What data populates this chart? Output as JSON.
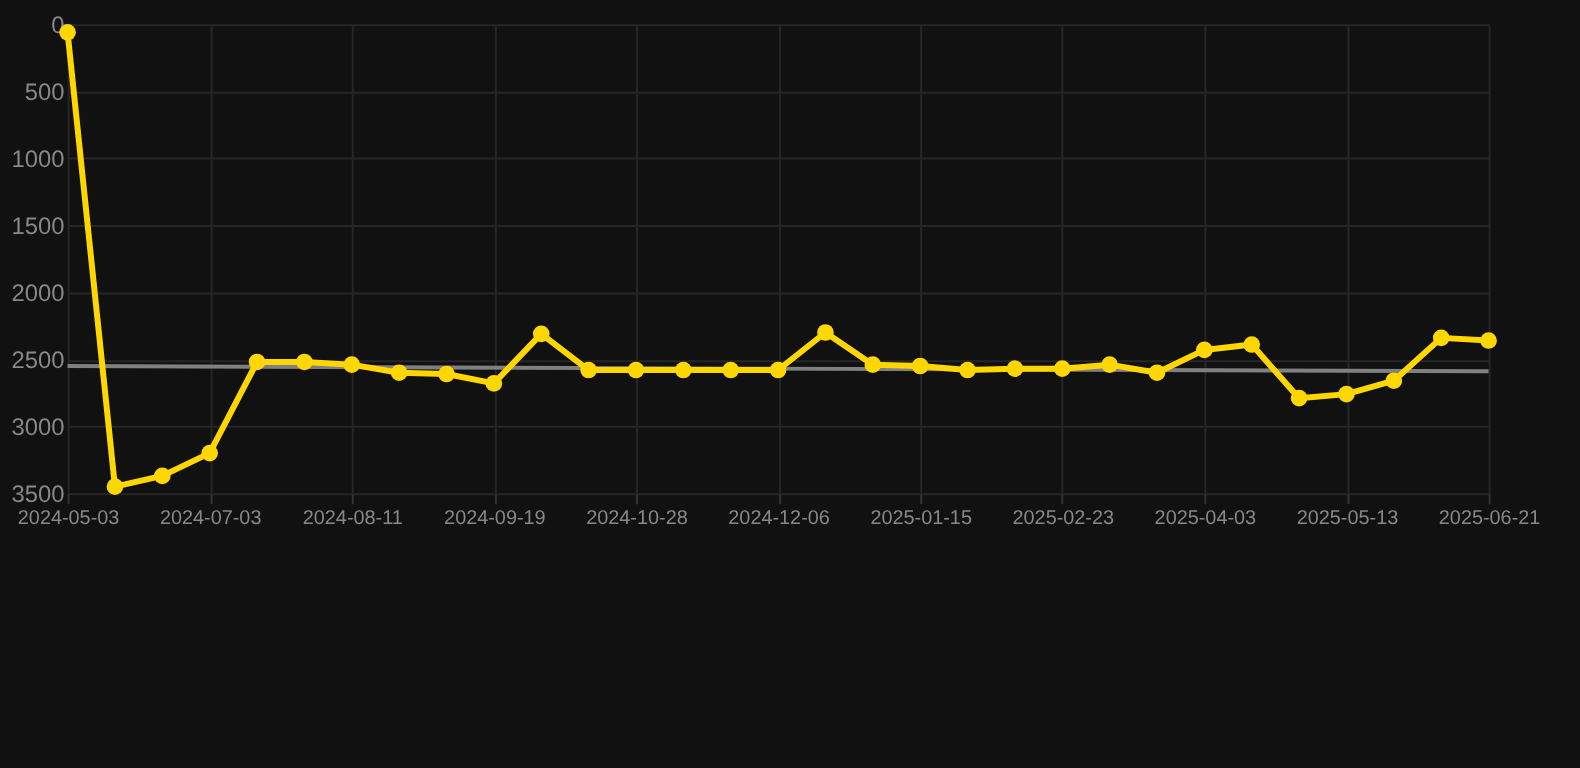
{
  "chart_data": {
    "type": "line",
    "categories": [
      "2024-05-03",
      null,
      null,
      "2024-07-03",
      null,
      null,
      "2024-08-11",
      null,
      null,
      "2024-09-19",
      null,
      null,
      "2024-10-28",
      null,
      null,
      "2024-12-06",
      null,
      null,
      "2025-01-15",
      null,
      null,
      "2025-02-23",
      null,
      null,
      "2025-04-03",
      null,
      null,
      "2025-05-13",
      null,
      null,
      "2025-06-21"
    ],
    "series": [
      {
        "color": "#ffd700",
        "marker": "circle",
        "values": [
          60,
          3450,
          3370,
          3200,
          2520,
          2520,
          2540,
          2600,
          2610,
          2680,
          2310,
          2580,
          2580,
          2580,
          2580,
          2580,
          2300,
          2540,
          2550,
          2580,
          2570,
          2570,
          2540,
          2600,
          2430,
          2390,
          2790,
          2760,
          2660,
          2340,
          2360
        ]
      },
      {
        "type": "line",
        "color": "#808080",
        "marker": "none",
        "values": [
          2550,
          null,
          null,
          null,
          null,
          null,
          null,
          null,
          null,
          null,
          null,
          null,
          null,
          null,
          null,
          null,
          null,
          null,
          null,
          null,
          null,
          null,
          null,
          null,
          null,
          null,
          null,
          null,
          null,
          null,
          2590
        ]
      }
    ],
    "ylim": [
      3500,
      0
    ],
    "yticks": [
      0,
      500,
      1000,
      1500,
      2000,
      2500,
      3000,
      3500
    ],
    "grid": true
  }
}
